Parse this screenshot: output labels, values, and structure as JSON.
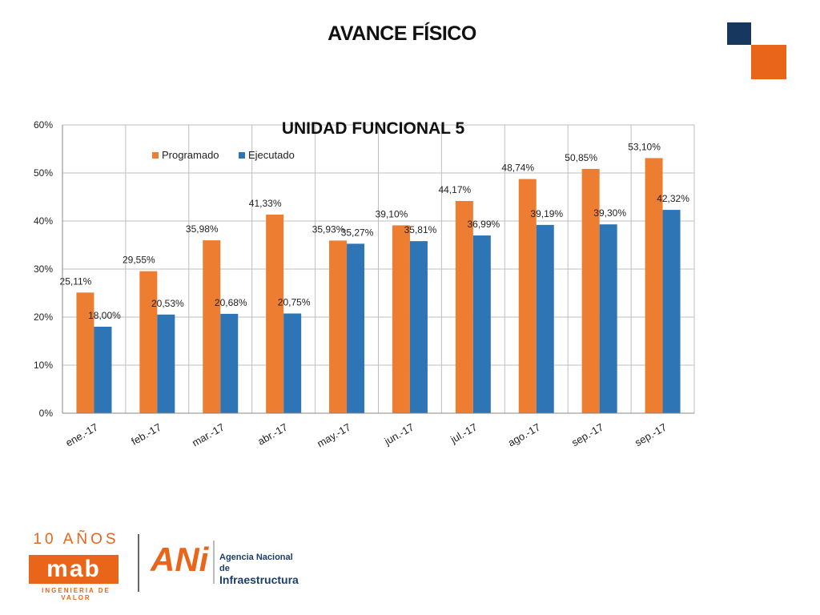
{
  "header": {
    "title": "AVANCE FÍSICO",
    "colors": {
      "navy": "#17375e",
      "orange": "#e8651a"
    }
  },
  "chart_data": {
    "type": "bar",
    "title": "UNIDAD FUNCIONAL 5",
    "categories": [
      "ene.-17",
      "feb.-17",
      "mar.-17",
      "abr.-17",
      "may.-17",
      "jun.-17",
      "jul.-17",
      "ago.-17",
      "sep.-17",
      "sep.-17"
    ],
    "series": [
      {
        "name": "Programado",
        "color": "#ed7d31",
        "values": [
          25.11,
          29.55,
          35.98,
          41.33,
          35.93,
          39.1,
          44.17,
          48.74,
          50.85,
          53.1
        ],
        "labels": [
          "25,11%",
          "29,55%",
          "35,98%",
          "41,33%",
          "35,93%",
          "39,10%",
          "44,17%",
          "48,74%",
          "50,85%",
          "53,10%"
        ]
      },
      {
        "name": "Ejecutado",
        "color": "#2e75b6",
        "values": [
          18.0,
          20.53,
          20.68,
          20.75,
          35.27,
          35.81,
          36.99,
          39.19,
          39.3,
          42.32
        ],
        "labels": [
          "18,00%",
          "20,53%",
          "20,68%",
          "20,75%",
          "35,27%",
          "35,81%",
          "36,99%",
          "39,19%",
          "39,30%",
          "42,32%"
        ]
      }
    ],
    "ylim": [
      0,
      60
    ],
    "yticks": [
      0,
      10,
      20,
      30,
      40,
      50,
      60
    ],
    "ytick_labels": [
      "0%",
      "10%",
      "20%",
      "30%",
      "40%",
      "50%",
      "60%"
    ],
    "xlabel": "",
    "ylabel": "",
    "grid": true,
    "legend": "top-left"
  },
  "footer": {
    "mab": {
      "anios": "10 AÑOS",
      "name": "mab",
      "tagline": "INGENIERIA DE VALOR"
    },
    "ani": {
      "word": "ANi",
      "line1": "Agencia Nacional de",
      "line2": "Infraestructura"
    }
  }
}
